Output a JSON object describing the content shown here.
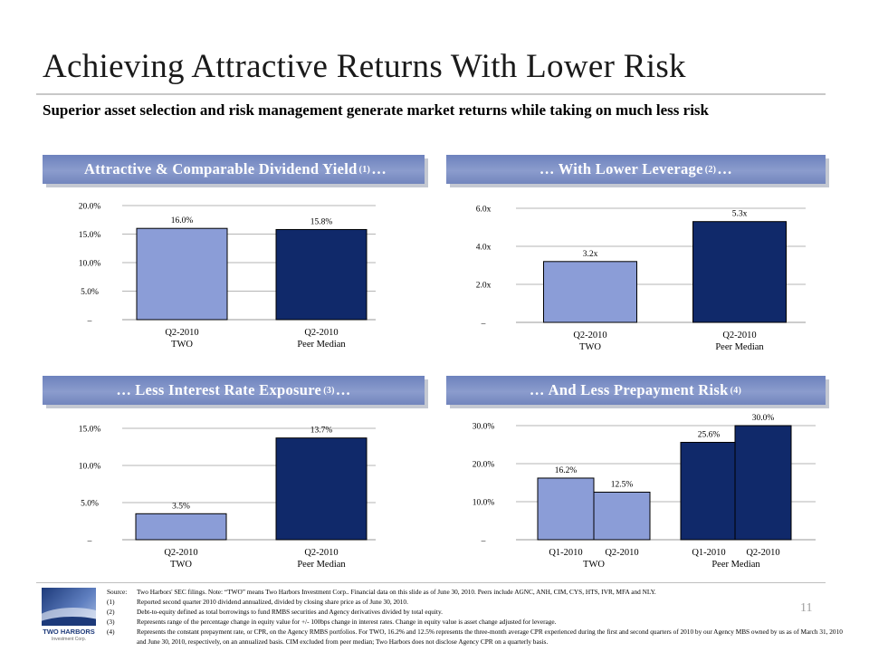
{
  "title": "Achieving Attractive Returns With Lower Risk",
  "subtitle": "Superior asset selection and risk management generate market returns while taking on much less risk",
  "panels": [
    {
      "prefix": "",
      "text": "Attractive & Comparable Dividend Yield",
      "note": "(1)",
      "suffix": "…"
    },
    {
      "prefix": "…",
      "text": "With Lower Leverage",
      "note": "(2)",
      "suffix": "…"
    },
    {
      "prefix": "…",
      "text": "Less Interest Rate Exposure",
      "note": "(3)",
      "suffix": "…"
    },
    {
      "prefix": "…",
      "text": "And Less Prepayment Risk",
      "note": "(4)",
      "suffix": ""
    }
  ],
  "chart_data": [
    {
      "type": "bar",
      "categories": [
        "Q2-2010|TWO",
        "Q2-2010|Peer Median"
      ],
      "series": [
        {
          "values": [
            16.0,
            15.8
          ],
          "labels": [
            "16.0%",
            "15.8%"
          ]
        }
      ],
      "ylim": [
        0,
        20
      ],
      "yticks": [
        0,
        5,
        10,
        15,
        20
      ],
      "ytick_labels": [
        "–",
        "5.0%",
        "10.0%",
        "15.0%",
        "20.0%"
      ],
      "colors": [
        "#8b9dd7",
        "#10296a"
      ],
      "grid": true
    },
    {
      "type": "bar",
      "categories": [
        "Q2-2010|TWO",
        "Q2-2010|Peer Median"
      ],
      "series": [
        {
          "values": [
            3.2,
            5.3
          ],
          "labels": [
            "3.2x",
            "5.3x"
          ]
        }
      ],
      "ylim": [
        0,
        6
      ],
      "yticks": [
        0,
        2,
        4,
        6
      ],
      "ytick_labels": [
        "–",
        "2.0x",
        "4.0x",
        "6.0x"
      ],
      "colors": [
        "#8b9dd7",
        "#10296a"
      ],
      "grid": true
    },
    {
      "type": "bar",
      "categories": [
        "Q2-2010|TWO",
        "Q2-2010|Peer Median"
      ],
      "series": [
        {
          "values": [
            3.5,
            13.7
          ],
          "labels": [
            "3.5%",
            "13.7%"
          ]
        }
      ],
      "ylim": [
        0,
        15
      ],
      "yticks": [
        0,
        5,
        10,
        15
      ],
      "ytick_labels": [
        "–",
        "5.0%",
        "10.0%",
        "15.0%"
      ],
      "colors": [
        "#8b9dd7",
        "#10296a"
      ],
      "grid": true
    },
    {
      "type": "bar",
      "categories": [
        "Q1-2010",
        "Q2-2010",
        "Q1-2010",
        "Q2-2010"
      ],
      "groups": [
        "TWO",
        "Peer Median"
      ],
      "series": [
        {
          "values": [
            16.2,
            12.5,
            25.6,
            30.0
          ],
          "labels": [
            "16.2%",
            "12.5%",
            "25.6%",
            "30.0%"
          ]
        }
      ],
      "ylim": [
        0,
        30
      ],
      "yticks": [
        0,
        10,
        20,
        30
      ],
      "ytick_labels": [
        "–",
        "10.0%",
        "20.0%",
        "30.0%"
      ],
      "colors": [
        "#8b9dd7",
        "#8b9dd7",
        "#10296a",
        "#10296a"
      ],
      "grid": true
    }
  ],
  "footnotes": [
    {
      "mark": "Source:",
      "text": "Two Harbors' SEC filings.  Note: “TWO” means Two Harbors Investment Corp..  Financial data on this slide as of June 30, 2010. Peers include AGNC, ANH, CIM, CYS, HTS, IVR, MFA and NLY."
    },
    {
      "mark": "(1)",
      "text": "Reported second quarter 2010 dividend annualized, divided by closing share price as of June 30, 2010."
    },
    {
      "mark": "(2)",
      "text": "Debt-to-equity defined as total borrowings to fund RMBS securities and Agency derivatives divided by total equity."
    },
    {
      "mark": "(3)",
      "text": "Represents range of the percentage change in equity value for +/- 100bps change in interest rates. Change in equity value is asset change adjusted for leverage."
    },
    {
      "mark": "(4)",
      "text": "Represents the constant prepayment rate, or CPR, on the Agency RMBS portfolios.  For TWO, 16.2% and 12.5% represents the three-month average CPR experienced during the first and second quarters of 2010 by our Agency MBS owned by us as of March 31, 2010 and June 30, 2010, respectively, on an annualized basis.  CIM excluded from peer median; Two Harbors does not disclose Agency CPR on a quarterly basis."
    }
  ],
  "logo": {
    "name": "TWO HARBORS",
    "sub": "Investment Corp."
  },
  "page_number": "11"
}
